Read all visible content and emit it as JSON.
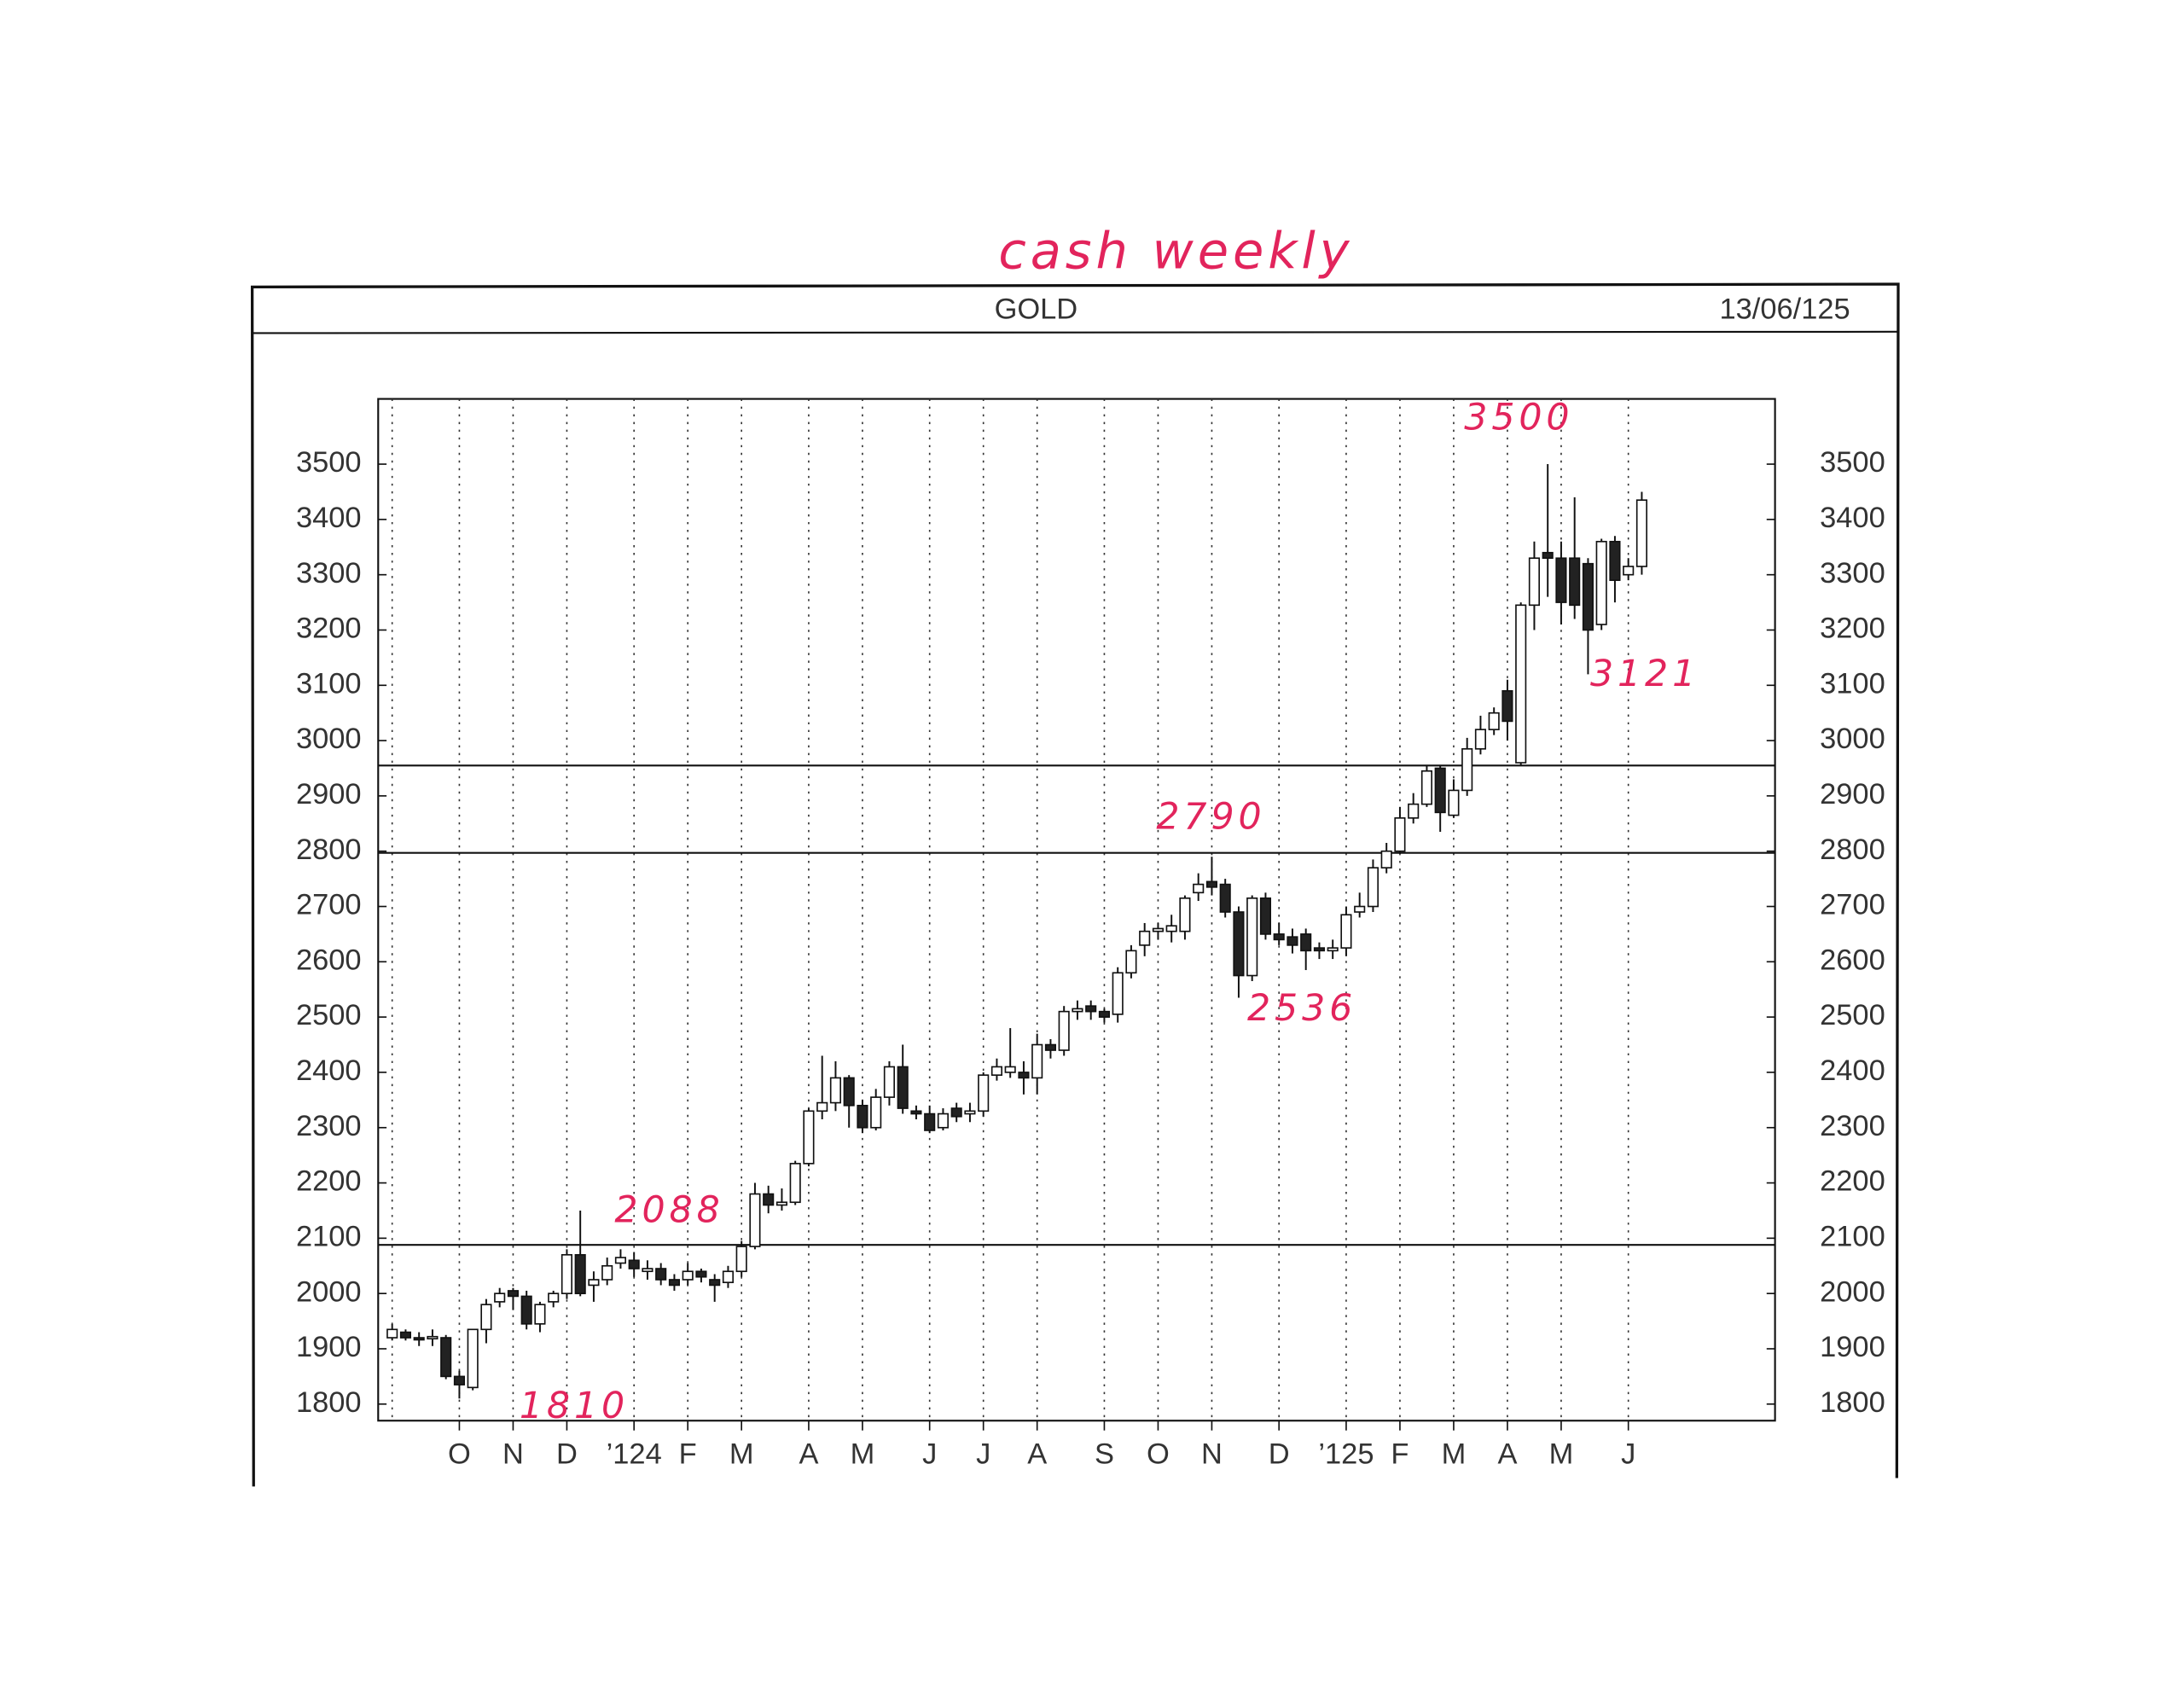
{
  "chart_data": {
    "type": "candlestick",
    "handwritten_title": "cash weekly",
    "title": "GOLD",
    "date": "13/06/125",
    "categories": [
      null,
      null,
      null,
      null,
      null,
      "O",
      null,
      null,
      null,
      "N",
      null,
      null,
      null,
      "D",
      null,
      null,
      null,
      null,
      "’124",
      null,
      null,
      null,
      "F",
      null,
      null,
      null,
      "M",
      null,
      null,
      null,
      null,
      "A",
      null,
      null,
      null,
      "M",
      null,
      null,
      null,
      null,
      "J",
      null,
      null,
      null,
      "J",
      null,
      null,
      null,
      "A",
      null,
      null,
      null,
      null,
      "S",
      null,
      null,
      null,
      "O",
      null,
      null,
      null,
      "N",
      null,
      null,
      null,
      null,
      "D",
      null,
      null,
      null,
      null,
      "’125",
      null,
      null,
      null,
      "F",
      null,
      null,
      null,
      "M",
      null,
      null,
      null,
      "A",
      null,
      null,
      null,
      "M",
      null,
      null,
      null,
      null,
      "J",
      null
    ],
    "open": [
      1920,
      1930,
      1920,
      1920,
      1920,
      1850,
      1830,
      1935,
      1985,
      2005,
      1995,
      1945,
      1985,
      2000,
      2070,
      2015,
      2025,
      2055,
      2060,
      2040,
      2045,
      2025,
      2025,
      2040,
      2025,
      2020,
      2040,
      2085,
      2180,
      2160,
      2165,
      2235,
      2330,
      2345,
      2390,
      2340,
      2300,
      2355,
      2410,
      2330,
      2325,
      2300,
      2335,
      2325,
      2330,
      2395,
      2400,
      2400,
      2390,
      2450,
      2440,
      2510,
      2520,
      2510,
      2505,
      2580,
      2630,
      2655,
      2655,
      2655,
      2725,
      2745,
      2740,
      2690,
      2575,
      2715,
      2650,
      2645,
      2650,
      2625,
      2620,
      2625,
      2690,
      2700,
      2770,
      2800,
      2860,
      2885,
      2950,
      2865,
      2910,
      2985,
      3020,
      3090,
      2960,
      3245,
      3340,
      3330,
      3330,
      3320,
      3210,
      3360,
      3300,
      3315
    ],
    "high": [
      1945,
      1935,
      1930,
      1935,
      1925,
      1860,
      1935,
      1990,
      2010,
      2010,
      2005,
      1985,
      2005,
      2080,
      2150,
      2040,
      2065,
      2080,
      2075,
      2060,
      2055,
      2035,
      2055,
      2045,
      2035,
      2050,
      2095,
      2200,
      2195,
      2190,
      2240,
      2335,
      2430,
      2420,
      2395,
      2350,
      2370,
      2420,
      2450,
      2340,
      2340,
      2335,
      2345,
      2345,
      2400,
      2425,
      2480,
      2420,
      2470,
      2460,
      2520,
      2530,
      2530,
      2515,
      2590,
      2630,
      2670,
      2670,
      2685,
      2720,
      2760,
      2790,
      2750,
      2700,
      2720,
      2725,
      2670,
      2660,
      2660,
      2635,
      2640,
      2700,
      2725,
      2785,
      2815,
      2880,
      2905,
      2955,
      2955,
      2930,
      3005,
      3045,
      3060,
      3110,
      3250,
      3360,
      3500,
      3360,
      3440,
      3330,
      3365,
      3370,
      3330,
      3450
    ],
    "low": [
      1915,
      1915,
      1905,
      1905,
      1845,
      1810,
      1825,
      1910,
      1975,
      1970,
      1935,
      1930,
      1975,
      1990,
      1995,
      1985,
      2015,
      2045,
      2030,
      2025,
      2015,
      2005,
      2015,
      2020,
      1985,
      2010,
      2030,
      2080,
      2145,
      2150,
      2160,
      2230,
      2315,
      2330,
      2300,
      2290,
      2295,
      2340,
      2325,
      2315,
      2290,
      2295,
      2310,
      2310,
      2320,
      2385,
      2390,
      2360,
      2360,
      2425,
      2430,
      2495,
      2495,
      2490,
      2490,
      2570,
      2610,
      2640,
      2635,
      2640,
      2710,
      2720,
      2680,
      2535,
      2565,
      2640,
      2630,
      2615,
      2585,
      2605,
      2605,
      2610,
      2680,
      2690,
      2760,
      2795,
      2850,
      2880,
      2835,
      2860,
      2900,
      2975,
      3010,
      3000,
      2955,
      3200,
      3260,
      3210,
      3220,
      3120,
      3200,
      3250,
      3290,
      3300
    ],
    "close": [
      1935,
      1920,
      1918,
      1922,
      1850,
      1835,
      1935,
      1980,
      2000,
      1995,
      1945,
      1980,
      2000,
      2070,
      2000,
      2025,
      2050,
      2065,
      2045,
      2045,
      2025,
      2015,
      2040,
      2030,
      2015,
      2040,
      2085,
      2180,
      2160,
      2165,
      2235,
      2330,
      2345,
      2390,
      2340,
      2300,
      2355,
      2410,
      2335,
      2325,
      2295,
      2325,
      2320,
      2330,
      2395,
      2410,
      2410,
      2390,
      2450,
      2440,
      2510,
      2515,
      2510,
      2500,
      2580,
      2620,
      2655,
      2660,
      2665,
      2715,
      2740,
      2735,
      2690,
      2575,
      2715,
      2650,
      2640,
      2630,
      2620,
      2620,
      2625,
      2685,
      2700,
      2770,
      2800,
      2860,
      2885,
      2945,
      2870,
      2910,
      2985,
      3020,
      3050,
      3035,
      3245,
      3330,
      3330,
      3250,
      3245,
      3200,
      3360,
      3290,
      3315,
      3435
    ],
    "up_color": "#ffffff",
    "down_color": "#222222",
    "ylim": [
      1770,
      3618
    ],
    "yticks": [
      1800,
      1900,
      2000,
      2100,
      2200,
      2300,
      2400,
      2500,
      2600,
      2700,
      2800,
      2900,
      3000,
      3100,
      3200,
      3300,
      3400,
      3500
    ],
    "grid": true,
    "reference_lines": [
      2088,
      2797,
      2955
    ],
    "annotations": [
      "3500",
      "3121",
      "2790",
      "2536",
      "2088",
      "1810"
    ]
  }
}
